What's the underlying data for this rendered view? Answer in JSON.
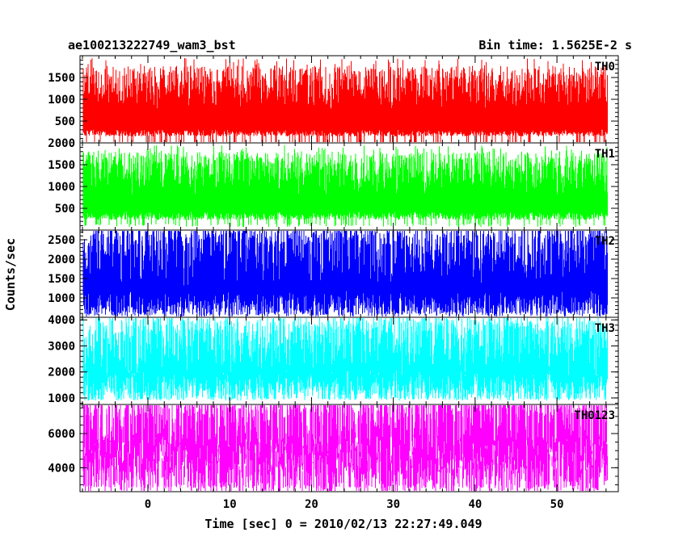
{
  "chart_data": {
    "type": "line",
    "header_left": "ae100213222749_wam3_bst",
    "header_right": "Bin time: 1.5625E-2 s",
    "xlabel": "Time [sec] 0 = 2010/02/13 22:27:49.049",
    "ylabel": "Counts/sec",
    "xlim": [
      -8.3,
      57.5
    ],
    "x_data_range": [
      -7.9,
      56.1
    ],
    "x_ticks": [
      0,
      10,
      20,
      30,
      40,
      50
    ],
    "x_tick_labels": [
      "0",
      "10",
      "20",
      "30",
      "40",
      "50"
    ],
    "x_minor_step": 2,
    "panels": [
      {
        "name": "TH0",
        "color": "#ff0000",
        "ylim": [
          0,
          2000
        ],
        "y_ticks": [
          500,
          1000,
          1500
        ],
        "y_tick_labels": [
          "500",
          "1000",
          "1500"
        ],
        "y_minor_step": 100,
        "band_low": [
          230,
          160
        ],
        "band_high": [
          1250,
          1150
        ],
        "spike_high": [
          1950,
          1400
        ],
        "spike_low": [
          15,
          10
        ]
      },
      {
        "name": "TH1",
        "color": "#00ff00",
        "ylim": [
          0,
          2000
        ],
        "y_ticks": [
          500,
          1000,
          1500,
          2000
        ],
        "y_tick_labels": [
          "500",
          "1000",
          "1500",
          "2000"
        ],
        "y_minor_step": 100,
        "band_low": [
          330,
          200
        ],
        "band_high": [
          1300,
          1100
        ],
        "spike_high": [
          1950,
          1500
        ],
        "spike_low": [
          150,
          70
        ]
      },
      {
        "name": "TH2",
        "color": "#0000ff",
        "ylim": [
          500,
          2750
        ],
        "y_ticks": [
          1000,
          1500,
          2000,
          2500
        ],
        "y_tick_labels": [
          "1000",
          "1500",
          "2000",
          "2500"
        ],
        "y_minor_step": 100,
        "band_low": [
          850,
          680
        ],
        "band_high": [
          2150,
          1950
        ],
        "spike_high": [
          2700,
          2350
        ],
        "spike_low": [
          640,
          560
        ]
      },
      {
        "name": "TH3",
        "color": "#00ffff",
        "ylim": [
          750,
          4100
        ],
        "y_ticks": [
          1000,
          2000,
          3000,
          4000
        ],
        "y_tick_labels": [
          "1000",
          "2000",
          "3000",
          "4000"
        ],
        "y_minor_step": 200,
        "band_low": [
          1500,
          1150
        ],
        "band_high": [
          3050,
          2700
        ],
        "spike_high": [
          4050,
          3500
        ],
        "spike_low": [
          1000,
          900
        ]
      },
      {
        "name": "TH0123",
        "color": "#ff00ff",
        "ylim": [
          2600,
          7700
        ],
        "y_ticks": [
          4000,
          6000
        ],
        "y_tick_labels": [
          "4000",
          "6000"
        ],
        "y_minor_step": 500,
        "band_low": [
          4100,
          3500
        ],
        "band_high": [
          6500,
          6000
        ],
        "spike_high": [
          7600,
          6900
        ],
        "spike_low": [
          3000,
          2800
        ]
      }
    ]
  }
}
